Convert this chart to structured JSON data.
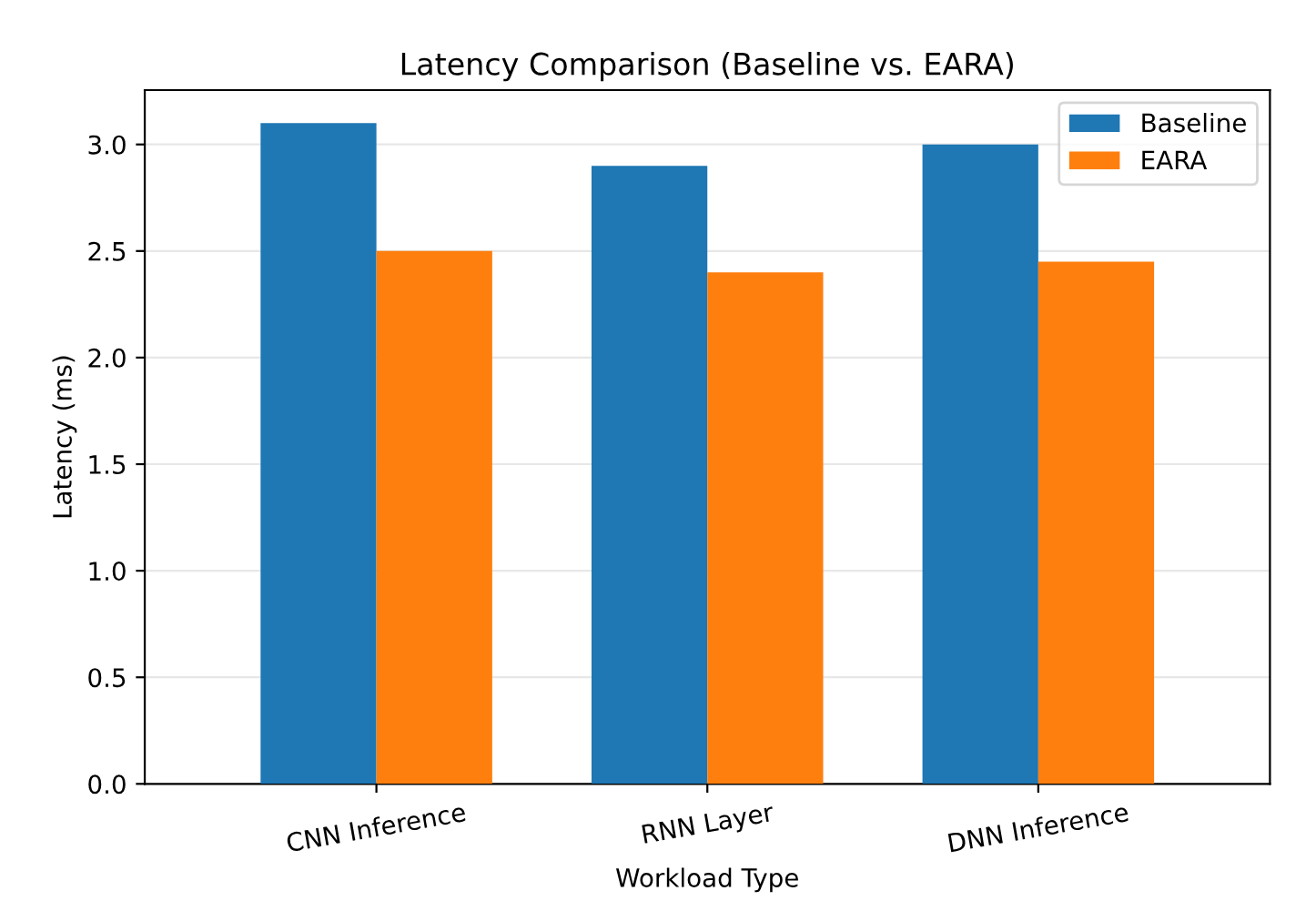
{
  "chart_data": {
    "type": "bar",
    "title": "Latency Comparison (Baseline vs. EARA)",
    "xlabel": "Workload Type",
    "ylabel": "Latency (ms)",
    "categories": [
      "CNN Inference",
      "RNN Layer",
      "DNN Inference"
    ],
    "series": [
      {
        "name": "Baseline",
        "color": "#1f77b4",
        "values": [
          3.1,
          2.9,
          3.0
        ]
      },
      {
        "name": "EARA",
        "color": "#ff7f0e",
        "values": [
          2.5,
          2.4,
          2.45
        ]
      }
    ],
    "ylim": [
      0,
      3.255
    ],
    "yticks": [
      {
        "value": 0,
        "label": "0.0"
      },
      {
        "value": 0.5,
        "label": "0.5"
      },
      {
        "value": 1,
        "label": "1.0"
      },
      {
        "value": 1.5,
        "label": "1.5"
      },
      {
        "value": 2,
        "label": "2.0"
      },
      {
        "value": 2.5,
        "label": "2.5"
      },
      {
        "value": 3,
        "label": "3.0"
      }
    ],
    "grid": "y",
    "legend": "top right"
  }
}
